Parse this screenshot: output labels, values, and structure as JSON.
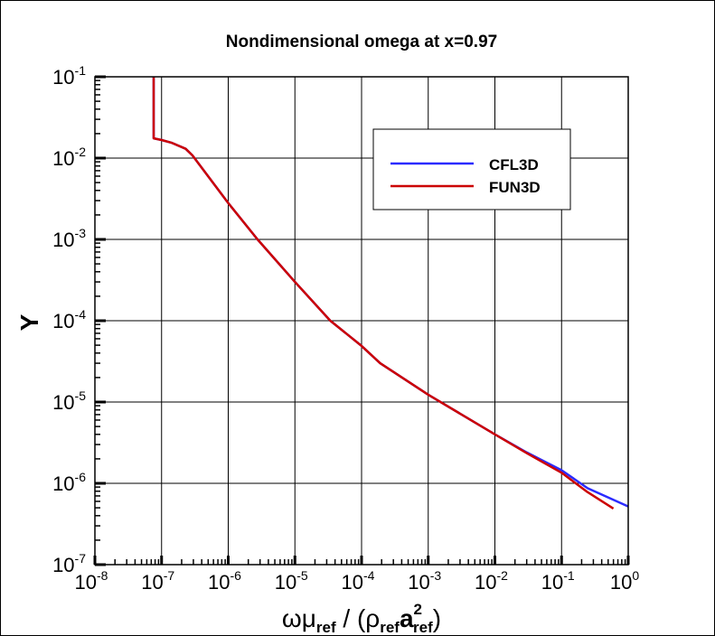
{
  "chart_data": {
    "type": "line",
    "title": "Nondimensional omega at x=0.97",
    "xlabel": {
      "base": "ωμ",
      "sub1": "ref",
      "mid": " / (ρ",
      "sub2": "ref",
      "a": "a",
      "sup": "2",
      "sub3": "ref",
      "close": ")"
    },
    "ylabel": "Y",
    "xscale": "log",
    "yscale": "log",
    "xlim": [
      1e-08,
      1
    ],
    "ylim": [
      1e-07,
      0.1
    ],
    "grid": true,
    "legend_placement": "top-right",
    "x_ticks": [
      {
        "base": "10",
        "exp": "-8",
        "v": -8
      },
      {
        "base": "10",
        "exp": "-7",
        "v": -7
      },
      {
        "base": "10",
        "exp": "-6",
        "v": -6
      },
      {
        "base": "10",
        "exp": "-5",
        "v": -5
      },
      {
        "base": "10",
        "exp": "-4",
        "v": -4
      },
      {
        "base": "10",
        "exp": "-3",
        "v": -3
      },
      {
        "base": "10",
        "exp": "-2",
        "v": -2
      },
      {
        "base": "10",
        "exp": "-1",
        "v": -1
      },
      {
        "base": "10",
        "exp": "0",
        "v": 0
      }
    ],
    "y_ticks": [
      {
        "base": "10",
        "exp": "-1",
        "v": -1
      },
      {
        "base": "10",
        "exp": "-2",
        "v": -2
      },
      {
        "base": "10",
        "exp": "-3",
        "v": -3
      },
      {
        "base": "10",
        "exp": "-4",
        "v": -4
      },
      {
        "base": "10",
        "exp": "-5",
        "v": -5
      },
      {
        "base": "10",
        "exp": "-6",
        "v": -6
      },
      {
        "base": "10",
        "exp": "-7",
        "v": -7
      }
    ],
    "series": [
      {
        "name": "CFL3D",
        "color": "#2b2bff",
        "x": [
          7.6e-08,
          7.6e-08,
          1e-07,
          1.4e-07,
          2.3e-07,
          2.9e-07,
          1e-06,
          2.75e-06,
          1e-05,
          3.4e-05,
          0.0001,
          0.00019,
          0.001,
          0.01,
          0.03,
          0.1,
          0.245,
          1
        ],
        "y": [
          0.1,
          0.0175,
          0.0167,
          0.0155,
          0.013,
          0.0108,
          0.0028,
          0.001,
          0.0003,
          0.0001,
          4.9e-05,
          3e-05,
          1.23e-05,
          4e-06,
          2.4e-06,
          1.45e-06,
          8.7e-07,
          5.2e-07
        ]
      },
      {
        "name": "FUN3D",
        "color": "#cc0000",
        "x": [
          7.6e-08,
          7.6e-08,
          1e-07,
          1.4e-07,
          2.3e-07,
          2.9e-07,
          1e-06,
          2.75e-06,
          1e-05,
          3.4e-05,
          0.0001,
          0.00019,
          0.001,
          0.01,
          0.03,
          0.1,
          0.245,
          0.6
        ],
        "y": [
          0.1,
          0.0175,
          0.0167,
          0.0155,
          0.013,
          0.0108,
          0.0028,
          0.001,
          0.0003,
          0.0001,
          4.9e-05,
          3e-05,
          1.23e-05,
          4e-06,
          2.35e-06,
          1.35e-06,
          7.8e-07,
          4.9e-07
        ]
      }
    ]
  }
}
